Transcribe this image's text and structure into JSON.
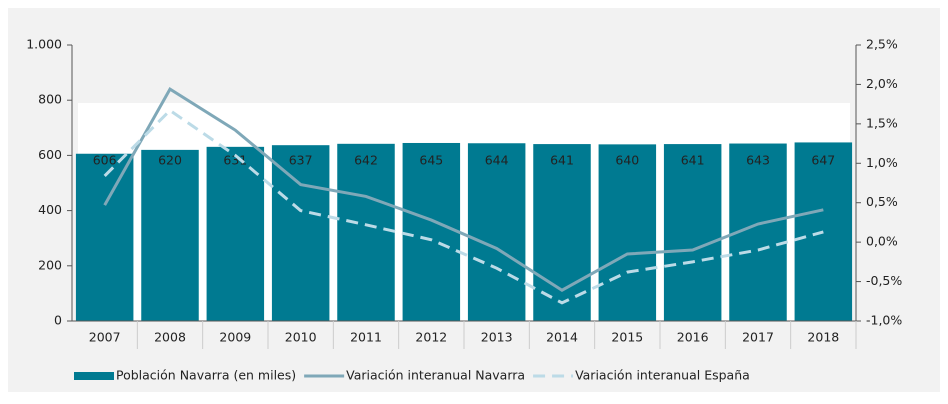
{
  "chart_data": {
    "type": "bar_line",
    "categories": [
      "2007",
      "2008",
      "2009",
      "2010",
      "2011",
      "2012",
      "2013",
      "2014",
      "2015",
      "2016",
      "2017",
      "2018"
    ],
    "series": [
      {
        "name": "Población Navarra (en miles)",
        "type": "bar",
        "color": "#007a91",
        "values": [
          606,
          620,
          631,
          637,
          642,
          645,
          644,
          641,
          640,
          641,
          643,
          647
        ]
      },
      {
        "name": "Variación interanual Navarra",
        "type": "line",
        "axis": "y2",
        "color": "#7fa8b8",
        "values": [
          0.47,
          1.94,
          1.42,
          0.73,
          0.58,
          0.28,
          -0.08,
          -0.61,
          -0.15,
          -0.1,
          0.23,
          0.41
        ]
      },
      {
        "name": "Variación interanual España",
        "type": "line",
        "dashed": true,
        "axis": "y2",
        "color": "#bcdbe7",
        "values": [
          0.84,
          1.67,
          1.1,
          0.4,
          0.22,
          0.03,
          -0.33,
          -0.77,
          -0.38,
          -0.25,
          -0.1,
          0.13
        ]
      }
    ],
    "ylim": [
      0,
      1000
    ],
    "yticks": [
      0,
      200,
      400,
      600,
      800,
      {
        "value": 1000,
        "label": "1.000"
      }
    ],
    "y2lim": [
      -1.0,
      2.5
    ],
    "y2ticks": [
      {
        "value": -1.0,
        "label": "-1,0%"
      },
      {
        "value": -0.5,
        "label": "-0,5%"
      },
      {
        "value": 0,
        "label": "0,0%"
      },
      {
        "value": 0.5,
        "label": "0,5%"
      },
      {
        "value": 1.0,
        "label": "1,0%"
      },
      {
        "value": 1.5,
        "label": "1,5%"
      },
      {
        "value": 2.0,
        "label": "2,0%"
      },
      {
        "value": 2.5,
        "label": "2,5%"
      }
    ],
    "legend": "bottom"
  }
}
